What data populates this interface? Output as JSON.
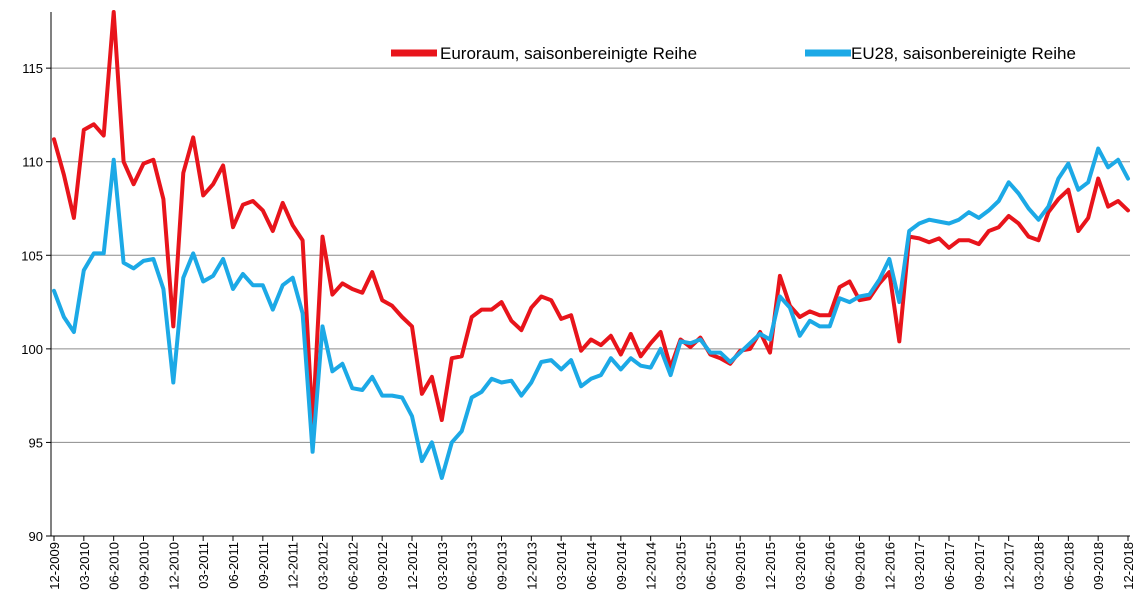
{
  "chart_data": {
    "type": "line",
    "title": "",
    "xlabel": "",
    "ylabel": "",
    "ylim": [
      90,
      118
    ],
    "yticks": [
      90,
      95,
      100,
      105,
      110,
      115
    ],
    "grid": "horizontal",
    "legend_placement": "top-right",
    "x_tick_labels": [
      "12-2009",
      "03-2010",
      "06-2010",
      "09-2010",
      "12-2010",
      "03-2011",
      "06-2011",
      "09-2011",
      "12-2011",
      "03-2012",
      "06-2012",
      "09-2012",
      "12-2012",
      "03-2013",
      "06-2013",
      "09-2013",
      "12-2013",
      "03-2014",
      "06-2014",
      "09-2014",
      "12-2014",
      "03-2015",
      "06-2015",
      "09-2015",
      "12-2015",
      "03-2016",
      "06-2016",
      "09-2016",
      "12-2016",
      "03-2017",
      "06-2017",
      "09-2017",
      "12-2017",
      "03-2018",
      "06-2018",
      "09-2018",
      "12-2018"
    ],
    "months_per_tick": 3,
    "series": [
      {
        "name": "Euroraum, saisonbereinigte Reihe",
        "color": "#e8141b",
        "values": [
          111.2,
          109.3,
          107.0,
          111.7,
          112.0,
          111.4,
          118.0,
          110.0,
          108.8,
          109.9,
          110.1,
          108.0,
          101.2,
          109.4,
          111.3,
          108.2,
          108.8,
          109.8,
          106.5,
          107.7,
          107.9,
          107.4,
          106.3,
          107.8,
          106.6,
          105.8,
          95.9,
          106.0,
          102.9,
          103.5,
          103.2,
          103.0,
          104.1,
          102.6,
          102.3,
          101.7,
          101.2,
          97.6,
          98.5,
          96.2,
          99.5,
          99.6,
          101.7,
          102.1,
          102.1,
          102.5,
          101.5,
          101.0,
          102.2,
          102.8,
          102.6,
          101.6,
          101.8,
          99.9,
          100.5,
          100.2,
          100.7,
          99.7,
          100.8,
          99.6,
          100.3,
          100.9,
          99.0,
          100.5,
          100.1,
          100.6,
          99.7,
          99.5,
          99.2,
          99.9,
          100.0,
          100.9,
          99.8,
          103.9,
          102.3,
          101.7,
          102.0,
          101.8,
          101.8,
          103.3,
          103.6,
          102.6,
          102.7,
          103.5,
          104.1,
          100.4,
          106.0,
          105.9,
          105.7,
          105.9,
          105.4,
          105.8,
          105.8,
          105.6,
          106.3,
          106.5,
          107.1,
          106.7,
          106.0,
          105.8,
          107.3,
          108.0,
          108.5,
          106.3,
          107.0,
          109.1,
          107.6,
          107.9,
          107.4
        ]
      },
      {
        "name": "EU28, saisonbereinigte Reihe",
        "color": "#1ca9e6",
        "values": [
          103.1,
          101.7,
          100.9,
          104.2,
          105.1,
          105.1,
          110.1,
          104.6,
          104.3,
          104.7,
          104.8,
          103.2,
          98.2,
          103.8,
          105.1,
          103.6,
          103.9,
          104.8,
          103.2,
          104.0,
          103.4,
          103.4,
          102.1,
          103.4,
          103.8,
          101.9,
          94.5,
          101.2,
          98.8,
          99.2,
          97.9,
          97.8,
          98.5,
          97.5,
          97.5,
          97.4,
          96.4,
          94.0,
          95.0,
          93.1,
          95.0,
          95.6,
          97.4,
          97.7,
          98.4,
          98.2,
          98.3,
          97.5,
          98.2,
          99.3,
          99.4,
          98.9,
          99.4,
          98.0,
          98.4,
          98.6,
          99.5,
          98.9,
          99.5,
          99.1,
          99.0,
          100.0,
          98.6,
          100.4,
          100.3,
          100.5,
          99.8,
          99.8,
          99.3,
          99.8,
          100.3,
          100.8,
          100.5,
          102.8,
          102.2,
          100.7,
          101.5,
          101.2,
          101.2,
          102.7,
          102.5,
          102.8,
          102.9,
          103.7,
          104.8,
          102.5,
          106.3,
          106.7,
          106.9,
          106.8,
          106.7,
          106.9,
          107.3,
          107.0,
          107.4,
          107.9,
          108.9,
          108.3,
          107.5,
          106.9,
          107.6,
          109.1,
          109.9,
          108.5,
          108.9,
          110.7,
          109.7,
          110.1,
          109.1
        ]
      }
    ]
  }
}
